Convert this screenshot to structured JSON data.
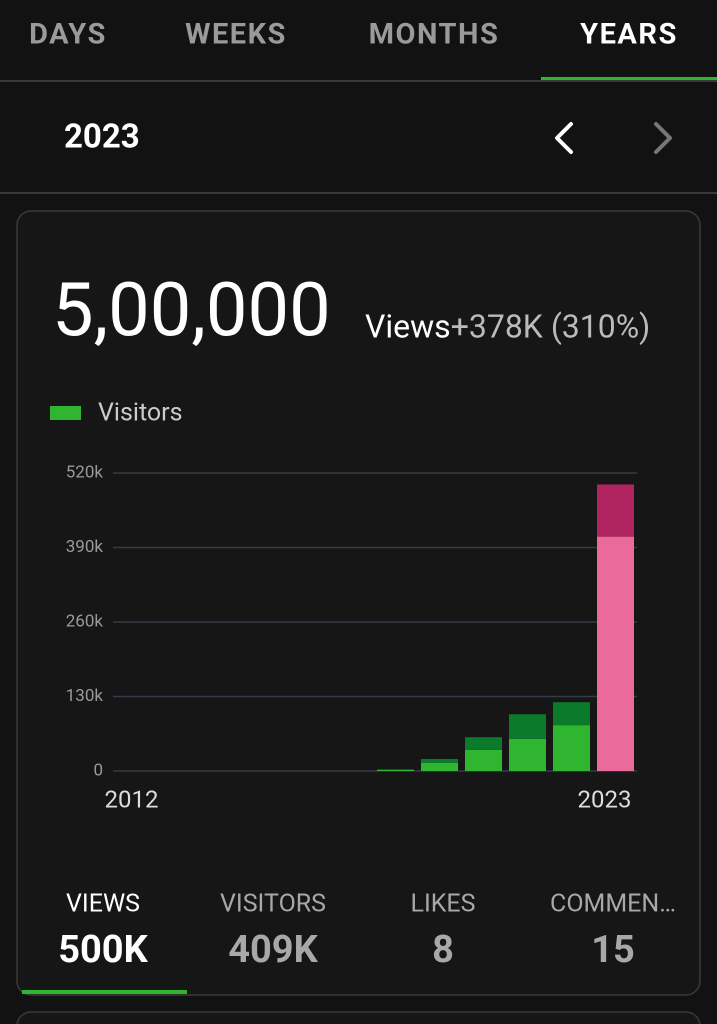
{
  "tabs": [
    "DAYS",
    "WEEKS",
    "MONTHS",
    "YEARS"
  ],
  "active_tab": 3,
  "period": "2023",
  "summary": {
    "total": "5,00,000",
    "unit": "Views",
    "change": "+378K (310%)"
  },
  "chart_data": {
    "type": "bar",
    "stacked": true,
    "categories": [
      "2012",
      null,
      null,
      null,
      null,
      null,
      null,
      null,
      null,
      null,
      null,
      "2023"
    ],
    "series": [
      {
        "name": "Visitors",
        "color": "#2fb52f",
        "colors": [
          "#2fb52f",
          "#2fb52f",
          "#2fb52f",
          "#2fb52f",
          "#2fb52f",
          "#2fb52f",
          "#2fb52f",
          "#2fb52f",
          "#2fb52f",
          "#2fb52f",
          "#2fb52f",
          "#e96a9b"
        ],
        "values": [
          0,
          0,
          0,
          0,
          0,
          0,
          2000,
          14000,
          37000,
          56000,
          80000,
          409000
        ]
      },
      {
        "color": "#0b7a2b",
        "colors": [
          "#0b7a2b",
          "#0b7a2b",
          "#0b7a2b",
          "#0b7a2b",
          "#0b7a2b",
          "#0b7a2b",
          "#0b7a2b",
          "#0b7a2b",
          "#0b7a2b",
          "#0b7a2b",
          "#0b7a2b",
          "#b0255f"
        ],
        "values": [
          0,
          0,
          0,
          0,
          0,
          0,
          1000,
          7000,
          22000,
          43000,
          40000,
          91000
        ]
      }
    ],
    "ylim": [
      0,
      520000
    ],
    "yticks": [
      0,
      {
        "value": 130000,
        "label": "130k"
      },
      {
        "value": 260000,
        "label": "260k"
      },
      {
        "value": 390000,
        "label": "390k"
      },
      {
        "value": 520000,
        "label": "520k"
      }
    ],
    "grid": true,
    "legend": "top-left"
  },
  "stats": [
    {
      "label": "VIEWS",
      "value": "500K"
    },
    {
      "label": "VISITORS",
      "value": "409K"
    },
    {
      "label": "LIKES",
      "value": "8"
    },
    {
      "label": "COMMEN…",
      "value": "15"
    }
  ],
  "active_stat": 0
}
